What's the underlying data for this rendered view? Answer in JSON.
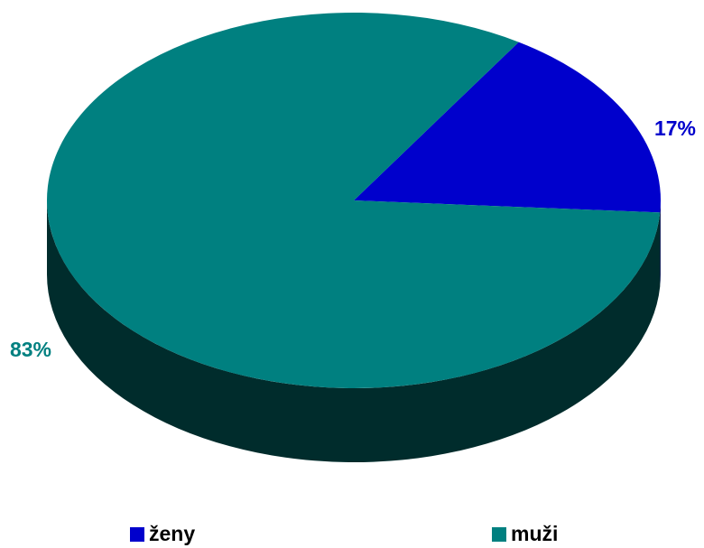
{
  "chart_data": {
    "type": "pie",
    "title": "",
    "series": [
      {
        "name": "",
        "categories": [
          "ženy",
          "muži"
        ],
        "values": [
          17,
          83
        ],
        "labels": [
          "17%",
          "83%"
        ]
      }
    ],
    "colors": {
      "ženy": "#0000cc",
      "muži": "#008080"
    },
    "legend": {
      "position": "bottom",
      "items": [
        "ženy",
        "muži"
      ]
    },
    "style": "3d-pie"
  }
}
